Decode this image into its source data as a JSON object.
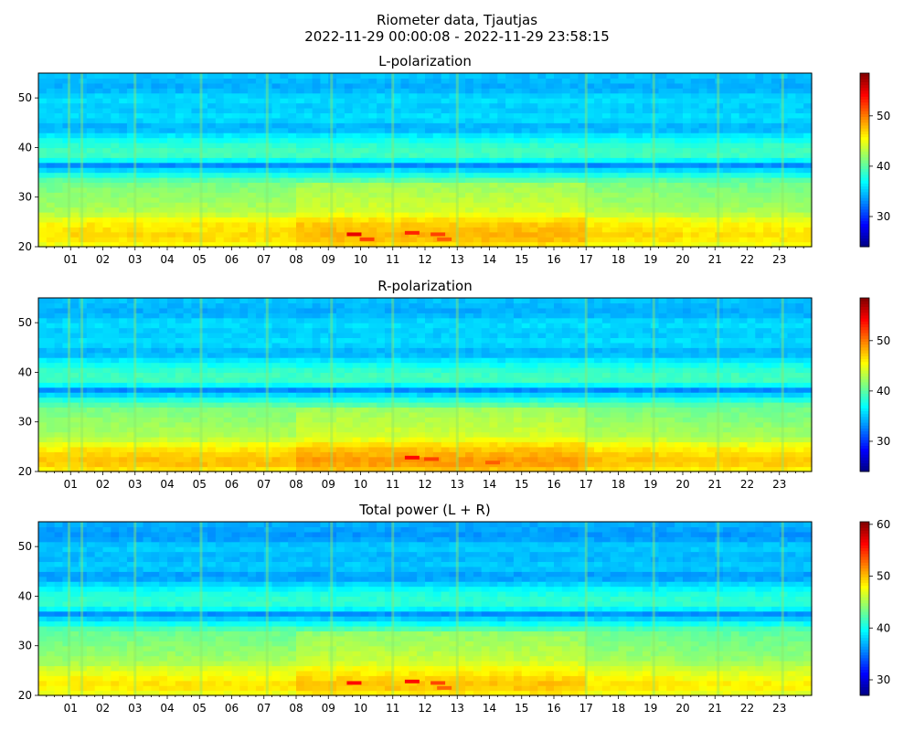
{
  "figure": {
    "title_line1": "Riometer data, Tjautjas",
    "title_line2": "2022-11-29 00:00:08 - 2022-11-29 23:58:15"
  },
  "chart_data": [
    {
      "type": "heatmap",
      "title": "L-polarization",
      "xlim": [
        0,
        24
      ],
      "ylim": [
        20,
        55
      ],
      "x_tick_labels": [
        "01",
        "02",
        "03",
        "04",
        "05",
        "06",
        "07",
        "08",
        "09",
        "10",
        "11",
        "12",
        "13",
        "14",
        "15",
        "16",
        "17",
        "18",
        "19",
        "20",
        "21",
        "22",
        "23"
      ],
      "y_ticks": [
        20,
        30,
        40,
        50
      ],
      "colorbar": {
        "range": [
          24,
          58.5
        ],
        "ticks": [
          30,
          40,
          50
        ]
      },
      "colormap": "jet",
      "bands_y_to_value": [
        [
          20,
          45
        ],
        [
          22,
          47
        ],
        [
          25,
          46
        ],
        [
          27,
          43
        ],
        [
          30,
          42
        ],
        [
          33,
          41
        ],
        [
          35,
          37
        ],
        [
          36.5,
          33
        ],
        [
          38,
          39
        ],
        [
          40,
          39
        ],
        [
          42,
          37
        ],
        [
          44,
          34
        ],
        [
          46,
          36
        ],
        [
          48,
          35
        ],
        [
          50,
          36
        ],
        [
          52,
          34
        ],
        [
          55,
          35
        ]
      ],
      "bright_hours": [
        0.95,
        1.35,
        3.0,
        5.05,
        7.1,
        9.1,
        11.0,
        13.0,
        17.0,
        19.1,
        21.1,
        23.1
      ],
      "hot_spots": [
        [
          9.8,
          22.5,
          55
        ],
        [
          10.2,
          21.5,
          52
        ],
        [
          11.6,
          22.8,
          53
        ],
        [
          12.4,
          22.5,
          52
        ],
        [
          12.6,
          21.5,
          51
        ]
      ]
    },
    {
      "type": "heatmap",
      "title": "R-polarization",
      "xlim": [
        0,
        24
      ],
      "ylim": [
        20,
        55
      ],
      "x_tick_labels": [
        "01",
        "02",
        "03",
        "04",
        "05",
        "06",
        "07",
        "08",
        "09",
        "10",
        "11",
        "12",
        "13",
        "14",
        "15",
        "16",
        "17",
        "18",
        "19",
        "20",
        "21",
        "22",
        "23"
      ],
      "y_ticks": [
        20,
        30,
        40,
        50
      ],
      "colorbar": {
        "range": [
          24,
          58.5
        ],
        "ticks": [
          30,
          40,
          50
        ]
      },
      "colormap": "jet",
      "bands_y_to_value": [
        [
          20,
          46
        ],
        [
          22,
          48
        ],
        [
          25,
          46
        ],
        [
          27,
          43
        ],
        [
          30,
          42
        ],
        [
          33,
          41
        ],
        [
          35,
          37
        ],
        [
          36.5,
          33
        ],
        [
          38,
          39
        ],
        [
          40,
          39
        ],
        [
          42,
          37
        ],
        [
          44,
          34
        ],
        [
          46,
          36
        ],
        [
          48,
          35
        ],
        [
          50,
          36
        ],
        [
          52,
          34
        ],
        [
          55,
          35
        ]
      ],
      "bright_hours": [
        0.95,
        1.35,
        3.0,
        5.05,
        7.1,
        9.1,
        11.0,
        13.0,
        17.0,
        19.1,
        21.1,
        23.1
      ],
      "hot_spots": [
        [
          11.6,
          22.8,
          54
        ],
        [
          12.2,
          22.5,
          52
        ],
        [
          14.1,
          21.8,
          51
        ]
      ]
    },
    {
      "type": "heatmap",
      "title": "Total power (L + R)",
      "xlim": [
        0,
        24
      ],
      "ylim": [
        20,
        55
      ],
      "x_tick_labels": [
        "01",
        "02",
        "03",
        "04",
        "05",
        "06",
        "07",
        "08",
        "09",
        "10",
        "11",
        "12",
        "13",
        "14",
        "15",
        "16",
        "17",
        "18",
        "19",
        "20",
        "21",
        "22",
        "23"
      ],
      "y_ticks": [
        20,
        30,
        40,
        50
      ],
      "colorbar": {
        "range": [
          27,
          60.5
        ],
        "ticks": [
          30,
          40,
          50,
          60
        ]
      },
      "colormap": "jet",
      "bands_y_to_value": [
        [
          20,
          47
        ],
        [
          22,
          49
        ],
        [
          25,
          47
        ],
        [
          27,
          45
        ],
        [
          30,
          44
        ],
        [
          33,
          43
        ],
        [
          35,
          39
        ],
        [
          36.5,
          36
        ],
        [
          38,
          41
        ],
        [
          40,
          41
        ],
        [
          42,
          39
        ],
        [
          44,
          36
        ],
        [
          46,
          38
        ],
        [
          48,
          37
        ],
        [
          50,
          38
        ],
        [
          52,
          36
        ],
        [
          55,
          37
        ]
      ],
      "bright_hours": [
        0.95,
        1.35,
        3.0,
        5.05,
        7.1,
        9.1,
        11.0,
        13.0,
        17.0,
        19.1,
        21.1,
        23.1
      ],
      "hot_spots": [
        [
          9.8,
          22.5,
          56
        ],
        [
          11.6,
          22.8,
          56
        ],
        [
          12.4,
          22.5,
          54
        ],
        [
          12.6,
          21.5,
          53
        ]
      ]
    }
  ]
}
